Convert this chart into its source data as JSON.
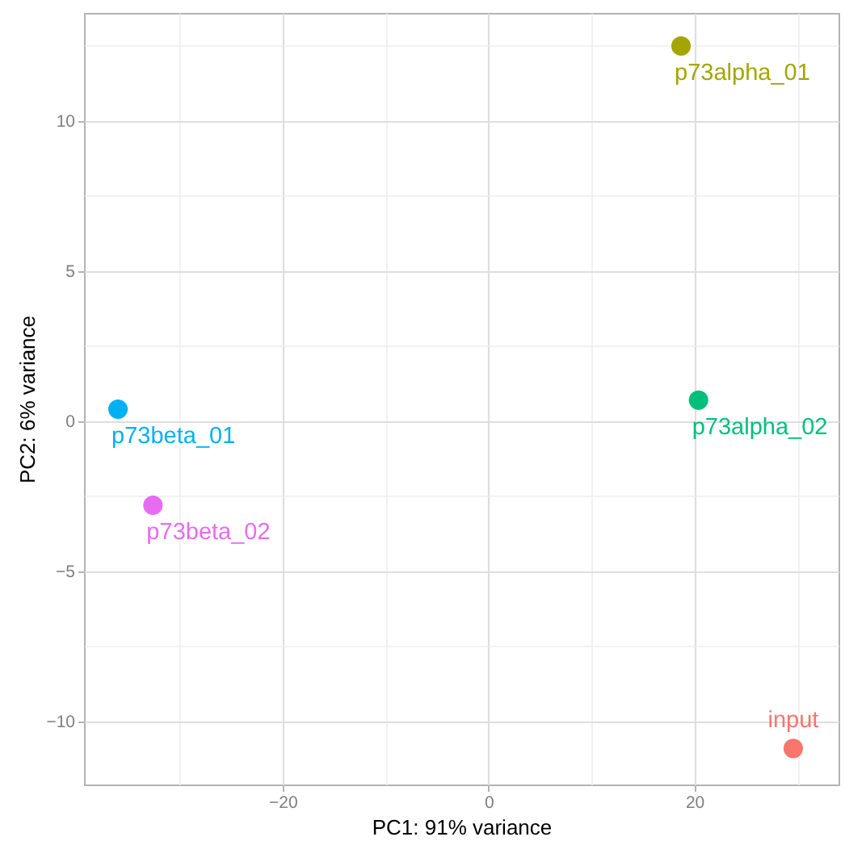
{
  "chart_data": {
    "type": "scatter",
    "xlabel": "PC1: 91% variance",
    "ylabel": "PC2: 6% variance",
    "series": [
      {
        "name": "input",
        "color": "#F8766D",
        "x": [
          29.6
        ],
        "values": [
          -10.9
        ]
      },
      {
        "name": "p73alpha_01",
        "color": "#A3A500",
        "x": [
          18.7
        ],
        "values": [
          12.5
        ]
      },
      {
        "name": "p73alpha_02",
        "color": "#00BF7D",
        "x": [
          20.4
        ],
        "values": [
          0.7
        ]
      },
      {
        "name": "p73beta_01",
        "color": "#00B0F6",
        "x": [
          -36.0
        ],
        "values": [
          0.4
        ]
      },
      {
        "name": "p73beta_02",
        "color": "#E76BF3",
        "x": [
          -32.6
        ],
        "values": [
          -2.8
        ]
      }
    ],
    "xlim": [
      -39.3,
      34
    ],
    "ylim": [
      -12.1,
      13.6
    ],
    "xticks": [
      {
        "value": -30,
        "label": null
      },
      {
        "value": -20,
        "label": "−20"
      },
      {
        "value": -10,
        "label": null
      },
      0,
      {
        "value": 10,
        "label": null
      },
      20,
      {
        "value": 30,
        "label": null
      }
    ],
    "yticks": [
      {
        "value": -10,
        "label": "−10"
      },
      {
        "value": -7.5,
        "label": null
      },
      {
        "value": -5,
        "label": "−5"
      },
      {
        "value": -2.5,
        "label": null
      },
      0,
      {
        "value": 2.5,
        "label": null
      },
      5,
      {
        "value": 7.5,
        "label": null
      },
      10,
      {
        "value": 12.5,
        "label": null
      }
    ],
    "grid": true,
    "marker": "circle"
  }
}
